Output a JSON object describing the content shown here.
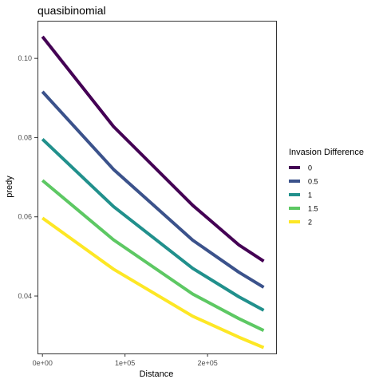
{
  "chart_data": {
    "type": "line",
    "title": "quasibinomial",
    "xlabel": "Distance",
    "ylabel": "predy",
    "xlim": [
      -6000,
      283000
    ],
    "ylim": [
      0.0255,
      0.1095
    ],
    "x_ticks": [
      {
        "value": 0,
        "label": "0e+00"
      },
      {
        "value": 100000,
        "label": "1e+05"
      },
      {
        "value": 200000,
        "label": "2e+05"
      }
    ],
    "y_ticks": [
      {
        "value": 0.04,
        "label": "0.04"
      },
      {
        "value": 0.06,
        "label": "0.06"
      },
      {
        "value": 0.08,
        "label": "0.08"
      },
      {
        "value": 0.1,
        "label": "0.10"
      }
    ],
    "grid": false,
    "legend": {
      "title": "Invasion Difference",
      "position": "right"
    },
    "series": [
      {
        "name": "0",
        "color": "#440154",
        "x": [
          0,
          86000,
          182000,
          238000,
          268000
        ],
        "y": [
          0.1055,
          0.0828,
          0.0629,
          0.0529,
          0.0488
        ]
      },
      {
        "name": "0.5",
        "color": "#3B528B",
        "x": [
          0,
          86000,
          182000,
          238000,
          268000
        ],
        "y": [
          0.0916,
          0.072,
          0.0541,
          0.046,
          0.0422
        ]
      },
      {
        "name": "1",
        "color": "#21908C",
        "x": [
          0,
          86000,
          182000,
          238000,
          268000
        ],
        "y": [
          0.0796,
          0.0626,
          0.047,
          0.0398,
          0.0364
        ]
      },
      {
        "name": "1.5",
        "color": "#5DC863",
        "x": [
          0,
          86000,
          182000,
          238000,
          268000
        ],
        "y": [
          0.0692,
          0.0542,
          0.0405,
          0.0343,
          0.0313
        ]
      },
      {
        "name": "2",
        "color": "#FDE725",
        "x": [
          0,
          86000,
          182000,
          238000,
          268000
        ],
        "y": [
          0.0597,
          0.0468,
          0.0349,
          0.0296,
          0.027
        ]
      }
    ]
  }
}
